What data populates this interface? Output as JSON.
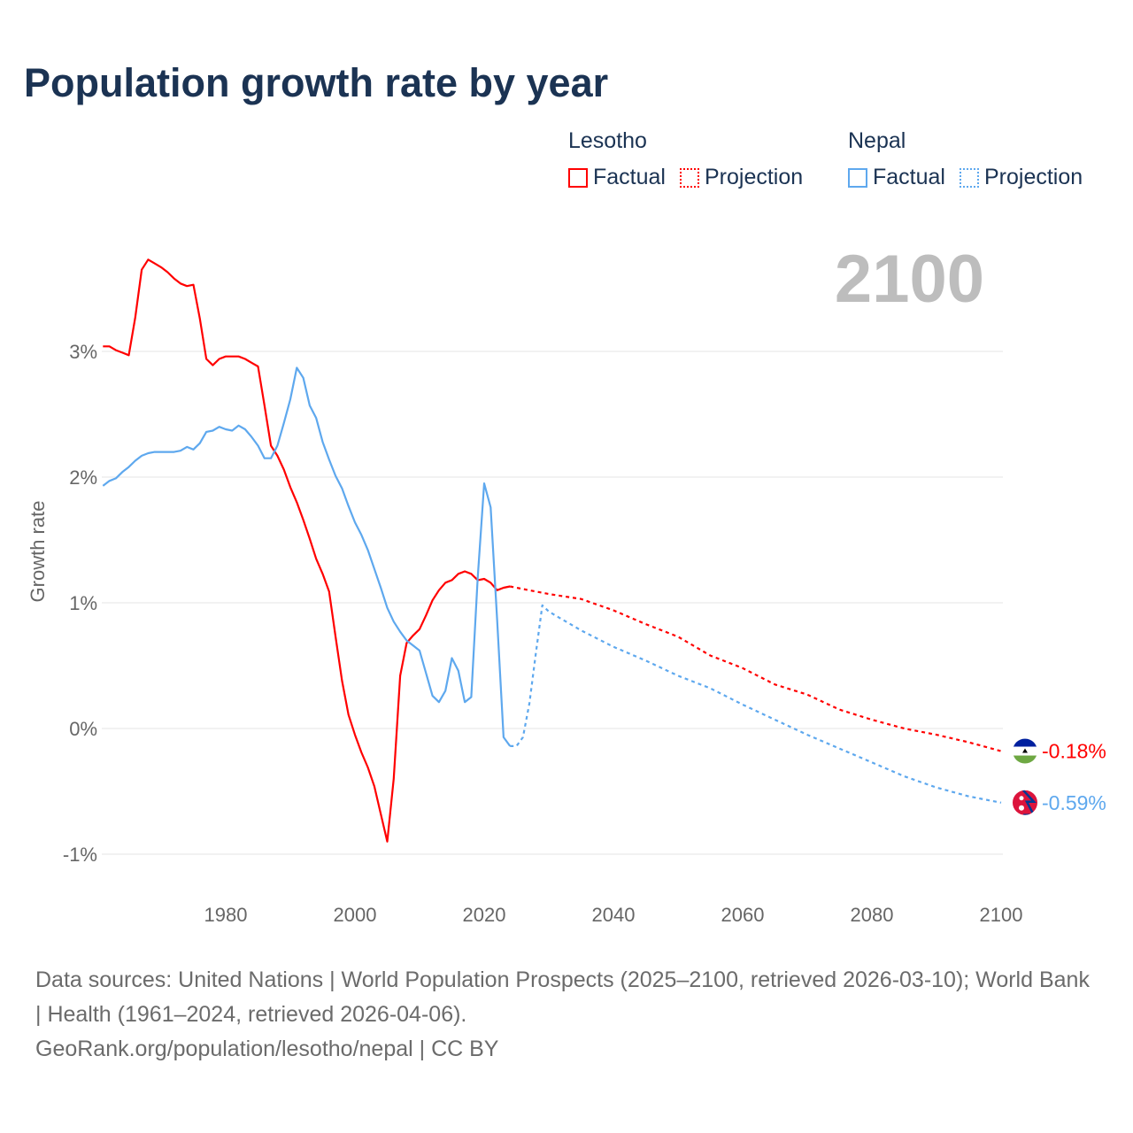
{
  "title": "Population growth rate by year",
  "legend": {
    "groups": [
      {
        "name": "Lesotho",
        "factual_label": "Factual",
        "projection_label": "Projection",
        "color": "#ff0000"
      },
      {
        "name": "Nepal",
        "factual_label": "Factual",
        "projection_label": "Projection",
        "color": "#5ea8ee"
      }
    ]
  },
  "current_year_label": "2100",
  "chart_data": {
    "type": "line",
    "title": "Population growth rate by year",
    "xlabel": "",
    "ylabel": "Growth rate",
    "xlim": [
      1961,
      2100
    ],
    "ylim": [
      -1.2,
      3.9
    ],
    "x_ticks": [
      1980,
      2000,
      2020,
      2040,
      2060,
      2080,
      2100
    ],
    "x_tick_labels": [
      "1980",
      "2000",
      "2020",
      "2040",
      "2060",
      "2080",
      "2100"
    ],
    "y_ticks": [
      -1,
      0,
      1,
      2,
      3
    ],
    "y_tick_labels": [
      "-1%",
      "0%",
      "1%",
      "2%",
      "3%"
    ],
    "grid": true,
    "series": [
      {
        "name": "Lesotho Factual",
        "country": "Lesotho",
        "style": "solid",
        "color": "#ff0000",
        "x": [
          1961,
          1962,
          1963,
          1964,
          1965,
          1966,
          1967,
          1968,
          1969,
          1970,
          1971,
          1972,
          1973,
          1974,
          1975,
          1976,
          1977,
          1978,
          1979,
          1980,
          1981,
          1982,
          1983,
          1984,
          1985,
          1986,
          1987,
          1988,
          1989,
          1990,
          1991,
          1992,
          1993,
          1994,
          1995,
          1996,
          1997,
          1998,
          1999,
          2000,
          2001,
          2002,
          2003,
          2004,
          2005,
          2006,
          2007,
          2008,
          2009,
          2010,
          2011,
          2012,
          2013,
          2014,
          2015,
          2016,
          2017,
          2018,
          2019,
          2020,
          2021,
          2022,
          2023,
          2024
        ],
        "y": [
          3.04,
          3.04,
          3.01,
          2.99,
          2.97,
          3.27,
          3.65,
          3.73,
          3.7,
          3.67,
          3.63,
          3.58,
          3.54,
          3.52,
          3.53,
          3.26,
          2.94,
          2.89,
          2.94,
          2.96,
          2.96,
          2.96,
          2.94,
          2.91,
          2.88,
          2.57,
          2.25,
          2.17,
          2.06,
          1.92,
          1.8,
          1.66,
          1.51,
          1.35,
          1.23,
          1.09,
          0.73,
          0.38,
          0.11,
          -0.05,
          -0.19,
          -0.31,
          -0.46,
          -0.68,
          -0.9,
          -0.4,
          0.42,
          0.68,
          0.74,
          0.79,
          0.9,
          1.02,
          1.1,
          1.16,
          1.18,
          1.23,
          1.25,
          1.23,
          1.18,
          1.19,
          1.16,
          1.1,
          1.12,
          1.13
        ]
      },
      {
        "name": "Lesotho Projection",
        "country": "Lesotho",
        "style": "dashed",
        "color": "#ff0000",
        "x": [
          2024,
          2025,
          2030,
          2035,
          2040,
          2045,
          2050,
          2055,
          2060,
          2065,
          2070,
          2075,
          2080,
          2085,
          2090,
          2095,
          2100
        ],
        "y": [
          1.13,
          1.12,
          1.07,
          1.03,
          0.94,
          0.83,
          0.73,
          0.58,
          0.48,
          0.35,
          0.27,
          0.15,
          0.07,
          0.0,
          -0.05,
          -0.11,
          -0.18
        ]
      },
      {
        "name": "Nepal Factual",
        "country": "Nepal",
        "style": "solid",
        "color": "#5ea8ee",
        "x": [
          1961,
          1962,
          1963,
          1964,
          1965,
          1966,
          1967,
          1968,
          1969,
          1970,
          1971,
          1972,
          1973,
          1974,
          1975,
          1976,
          1977,
          1978,
          1979,
          1980,
          1981,
          1982,
          1983,
          1984,
          1985,
          1986,
          1987,
          1988,
          1989,
          1990,
          1991,
          1992,
          1993,
          1994,
          1995,
          1996,
          1997,
          1998,
          1999,
          2000,
          2001,
          2002,
          2003,
          2004,
          2005,
          2006,
          2007,
          2008,
          2009,
          2010,
          2011,
          2012,
          2013,
          2014,
          2015,
          2016,
          2017,
          2018,
          2019,
          2020,
          2021,
          2022,
          2023,
          2024
        ],
        "y": [
          1.93,
          1.97,
          1.99,
          2.04,
          2.08,
          2.13,
          2.17,
          2.19,
          2.2,
          2.2,
          2.2,
          2.2,
          2.21,
          2.24,
          2.22,
          2.27,
          2.36,
          2.37,
          2.4,
          2.38,
          2.37,
          2.41,
          2.38,
          2.32,
          2.25,
          2.15,
          2.15,
          2.25,
          2.43,
          2.62,
          2.87,
          2.79,
          2.57,
          2.47,
          2.28,
          2.14,
          2.01,
          1.91,
          1.77,
          1.64,
          1.54,
          1.42,
          1.27,
          1.12,
          0.96,
          0.85,
          0.77,
          0.7,
          0.66,
          0.62,
          0.44,
          0.26,
          0.21,
          0.3,
          0.56,
          0.46,
          0.21,
          0.25,
          1.2,
          1.95,
          1.76,
          0.87,
          -0.07,
          -0.14
        ]
      },
      {
        "name": "Nepal Projection",
        "country": "Nepal",
        "style": "dashed",
        "color": "#5ea8ee",
        "x": [
          2024,
          2025,
          2026,
          2027,
          2028,
          2029,
          2030,
          2035,
          2040,
          2045,
          2050,
          2055,
          2060,
          2065,
          2070,
          2075,
          2080,
          2085,
          2090,
          2095,
          2100
        ],
        "y": [
          -0.14,
          -0.14,
          -0.07,
          0.2,
          0.6,
          0.98,
          0.93,
          0.78,
          0.65,
          0.54,
          0.42,
          0.32,
          0.19,
          0.07,
          -0.05,
          -0.16,
          -0.27,
          -0.38,
          -0.47,
          -0.54,
          -0.59
        ]
      }
    ],
    "end_labels": [
      {
        "country": "Lesotho",
        "value": -0.18,
        "text": "-0.18%",
        "color": "#ff0000",
        "flag": "lesotho-flag-icon"
      },
      {
        "country": "Nepal",
        "value": -0.59,
        "text": "-0.59%",
        "color": "#5ea8ee",
        "flag": "nepal-flag-icon"
      }
    ]
  },
  "footer": {
    "sources": "Data sources: United Nations | World Population Prospects (2025–2100, retrieved 2026-03-10); World Bank | Health (1961–2024, retrieved 2026-04-06).",
    "attribution": "GeoRank.org/population/lesotho/nepal | CC BY"
  }
}
